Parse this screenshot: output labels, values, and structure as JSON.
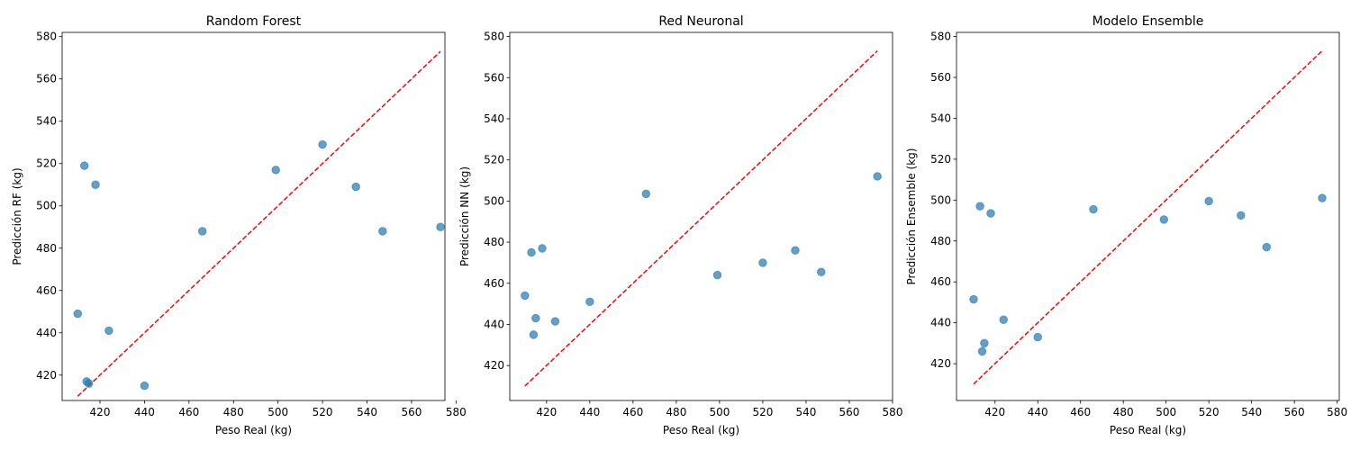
{
  "chart_data": [
    {
      "type": "scatter",
      "title": "Random Forest",
      "xlabel": "Peso Real (kg)",
      "ylabel": "Predicción RF (kg)",
      "xlim": [
        403,
        575
      ],
      "ylim": [
        408,
        582
      ],
      "xticks": [
        420,
        440,
        460,
        480,
        500,
        520,
        540,
        560,
        580
      ],
      "yticks": [
        420,
        440,
        460,
        480,
        500,
        520,
        540,
        560,
        580
      ],
      "reference_line": {
        "style": "dashed",
        "color": "#ff0000",
        "from": [
          410,
          410
        ],
        "to": [
          573,
          573
        ]
      },
      "point_color": "#1f77b4",
      "points": [
        {
          "x": 410,
          "y": 449
        },
        {
          "x": 413,
          "y": 519
        },
        {
          "x": 414,
          "y": 417
        },
        {
          "x": 415,
          "y": 416
        },
        {
          "x": 418,
          "y": 510
        },
        {
          "x": 424,
          "y": 441
        },
        {
          "x": 440,
          "y": 415
        },
        {
          "x": 466,
          "y": 488
        },
        {
          "x": 499,
          "y": 517
        },
        {
          "x": 520,
          "y": 529
        },
        {
          "x": 535,
          "y": 509
        },
        {
          "x": 547,
          "y": 488
        },
        {
          "x": 573,
          "y": 490
        }
      ]
    },
    {
      "type": "scatter",
      "title": "Red Neuronal",
      "xlabel": "Peso Real (kg)",
      "ylabel": "Predicción NN (kg)",
      "xlim": [
        403,
        580
      ],
      "ylim": [
        403,
        582
      ],
      "xticks": [
        420,
        440,
        460,
        480,
        500,
        520,
        540,
        560,
        580
      ],
      "yticks": [
        420,
        440,
        460,
        480,
        500,
        520,
        540,
        560,
        580
      ],
      "reference_line": {
        "style": "dashed",
        "color": "#ff0000",
        "from": [
          410,
          410
        ],
        "to": [
          573,
          573
        ]
      },
      "point_color": "#1f77b4",
      "points": [
        {
          "x": 410,
          "y": 454
        },
        {
          "x": 413,
          "y": 475
        },
        {
          "x": 414,
          "y": 435
        },
        {
          "x": 415,
          "y": 443
        },
        {
          "x": 418,
          "y": 477
        },
        {
          "x": 424,
          "y": 441.5
        },
        {
          "x": 440,
          "y": 451
        },
        {
          "x": 466,
          "y": 503.5
        },
        {
          "x": 499,
          "y": 464
        },
        {
          "x": 520,
          "y": 470
        },
        {
          "x": 535,
          "y": 476
        },
        {
          "x": 547,
          "y": 465.5
        },
        {
          "x": 573,
          "y": 512
        }
      ]
    },
    {
      "type": "scatter",
      "title": "Modelo Ensemble",
      "xlabel": "Peso Real (kg)",
      "ylabel": "Predicción Ensemble (kg)",
      "xlim": [
        402,
        581
      ],
      "ylim": [
        402,
        582
      ],
      "xticks": [
        420,
        440,
        460,
        480,
        500,
        520,
        540,
        560,
        580
      ],
      "yticks": [
        420,
        440,
        460,
        480,
        500,
        520,
        540,
        560,
        580
      ],
      "reference_line": {
        "style": "dashed",
        "color": "#ff0000",
        "from": [
          410,
          410
        ],
        "to": [
          573,
          573
        ]
      },
      "point_color": "#1f77b4",
      "points": [
        {
          "x": 410,
          "y": 451.5
        },
        {
          "x": 413,
          "y": 497
        },
        {
          "x": 414,
          "y": 426
        },
        {
          "x": 415,
          "y": 430
        },
        {
          "x": 418,
          "y": 493.5
        },
        {
          "x": 424,
          "y": 441.5
        },
        {
          "x": 440,
          "y": 433
        },
        {
          "x": 466,
          "y": 495.5
        },
        {
          "x": 499,
          "y": 490.5
        },
        {
          "x": 520,
          "y": 499.5
        },
        {
          "x": 535,
          "y": 492.5
        },
        {
          "x": 547,
          "y": 477
        },
        {
          "x": 573,
          "y": 501
        }
      ]
    }
  ]
}
